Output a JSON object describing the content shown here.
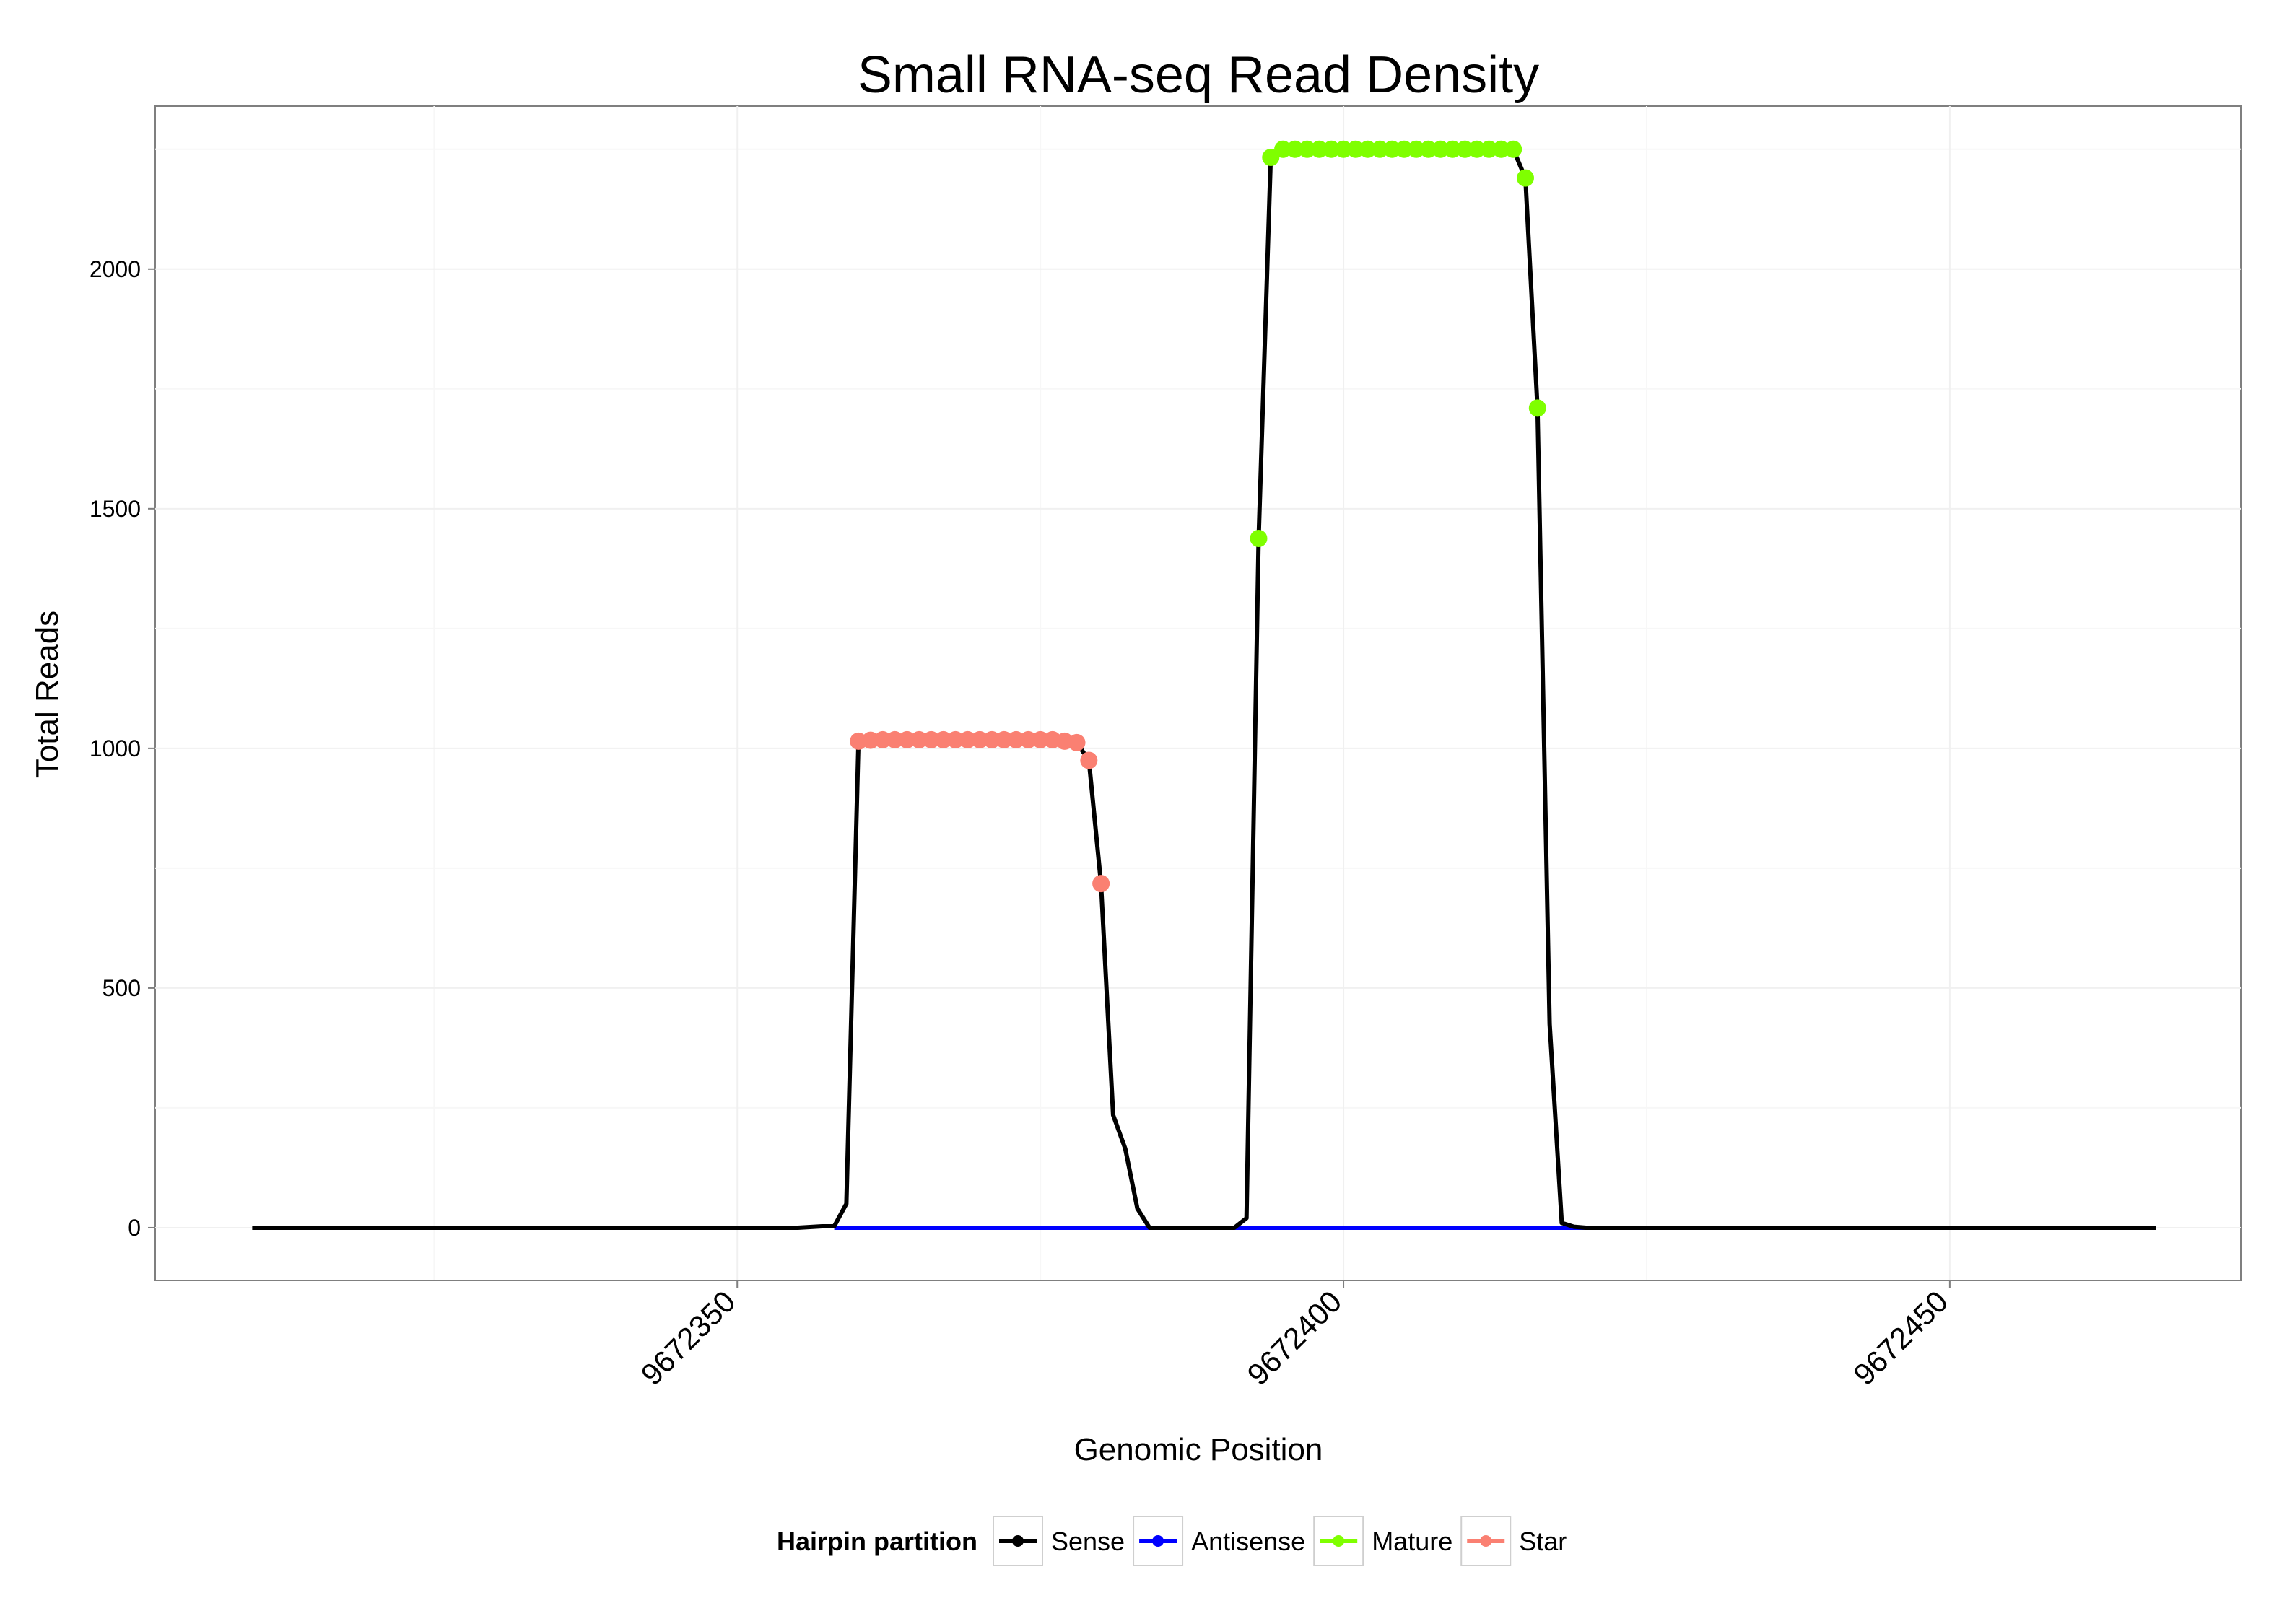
{
  "chart_data": {
    "type": "line",
    "title": "Small RNA-seq Read Density",
    "xlabel": "Genomic Position",
    "ylabel": "Total Reads",
    "xlim": [
      9672302,
      9672474
    ],
    "ylim": [
      -110,
      2340
    ],
    "x_ticks": [
      9672350,
      9672400,
      9672450
    ],
    "x_tick_labels": [
      "9672350",
      "9672400",
      "9672450"
    ],
    "y_ticks": [
      0,
      500,
      1000,
      1500,
      2000
    ],
    "y_tick_labels": [
      "0",
      "500",
      "1000",
      "1500",
      "2000"
    ],
    "grid": true,
    "legend": {
      "title": "Hairpin partition",
      "position": "bottom",
      "entries": [
        {
          "name": "Sense",
          "color": "#000000"
        },
        {
          "name": "Antisense",
          "color": "#0000ff"
        },
        {
          "name": "Mature",
          "color": "#7fff00"
        },
        {
          "name": "Star",
          "color": "#fa8072"
        }
      ]
    },
    "series": [
      {
        "name": "Sense",
        "color": "#000000",
        "kind": "line",
        "x": [
          9672310,
          9672355,
          9672357,
          9672358,
          9672359,
          9672360,
          9672361,
          9672362,
          9672363,
          9672364,
          9672365,
          9672366,
          9672367,
          9672368,
          9672369,
          9672370,
          9672371,
          9672372,
          9672373,
          9672374,
          9672375,
          9672376,
          9672377,
          9672378,
          9672379,
          9672380,
          9672381,
          9672382,
          9672383,
          9672384,
          9672385,
          9672386,
          9672387,
          9672388,
          9672389,
          9672390,
          9672391,
          9672392,
          9672393,
          9672394,
          9672395,
          9672396,
          9672397,
          9672398,
          9672399,
          9672400,
          9672401,
          9672402,
          9672403,
          9672404,
          9672405,
          9672406,
          9672407,
          9672408,
          9672409,
          9672410,
          9672411,
          9672412,
          9672413,
          9672414,
          9672415,
          9672416,
          9672417,
          9672418,
          9672419,
          9672420,
          9672467
        ],
        "y": [
          0,
          0,
          3,
          3,
          50,
          1015,
          1017,
          1018,
          1018,
          1018,
          1018,
          1018,
          1018,
          1018,
          1018,
          1018,
          1018,
          1018,
          1018,
          1018,
          1018,
          1018,
          1015,
          1012,
          975,
          718,
          235,
          165,
          40,
          0,
          0,
          0,
          0,
          0,
          0,
          0,
          0,
          20,
          1438,
          2233,
          2250,
          2250,
          2250,
          2250,
          2250,
          2250,
          2250,
          2250,
          2250,
          2250,
          2250,
          2250,
          2250,
          2250,
          2250,
          2250,
          2250,
          2250,
          2250,
          2250,
          2190,
          1710,
          425,
          10,
          2,
          0,
          0
        ]
      },
      {
        "name": "Antisense",
        "color": "#0000ff",
        "kind": "line",
        "x": [
          9672358,
          9672420
        ],
        "y": [
          0,
          0
        ]
      },
      {
        "name": "Mature",
        "color": "#7fff00",
        "kind": "points",
        "x": [
          9672393,
          9672394,
          9672395,
          9672396,
          9672397,
          9672398,
          9672399,
          9672400,
          9672401,
          9672402,
          9672403,
          9672404,
          9672405,
          9672406,
          9672407,
          9672408,
          9672409,
          9672410,
          9672411,
          9672412,
          9672413,
          9672414,
          9672415,
          9672416
        ],
        "y": [
          1438,
          2233,
          2250,
          2250,
          2250,
          2250,
          2250,
          2250,
          2250,
          2250,
          2250,
          2250,
          2250,
          2250,
          2250,
          2250,
          2250,
          2250,
          2250,
          2250,
          2250,
          2250,
          2190,
          1710
        ]
      },
      {
        "name": "Star",
        "color": "#fa8072",
        "kind": "points",
        "x": [
          9672360,
          9672361,
          9672362,
          9672363,
          9672364,
          9672365,
          9672366,
          9672367,
          9672368,
          9672369,
          9672370,
          9672371,
          9672372,
          9672373,
          9672374,
          9672375,
          9672376,
          9672377,
          9672378,
          9672379,
          9672380
        ],
        "y": [
          1015,
          1017,
          1018,
          1018,
          1018,
          1018,
          1018,
          1018,
          1018,
          1018,
          1018,
          1018,
          1018,
          1018,
          1018,
          1018,
          1018,
          1015,
          1012,
          975,
          718
        ]
      }
    ]
  }
}
